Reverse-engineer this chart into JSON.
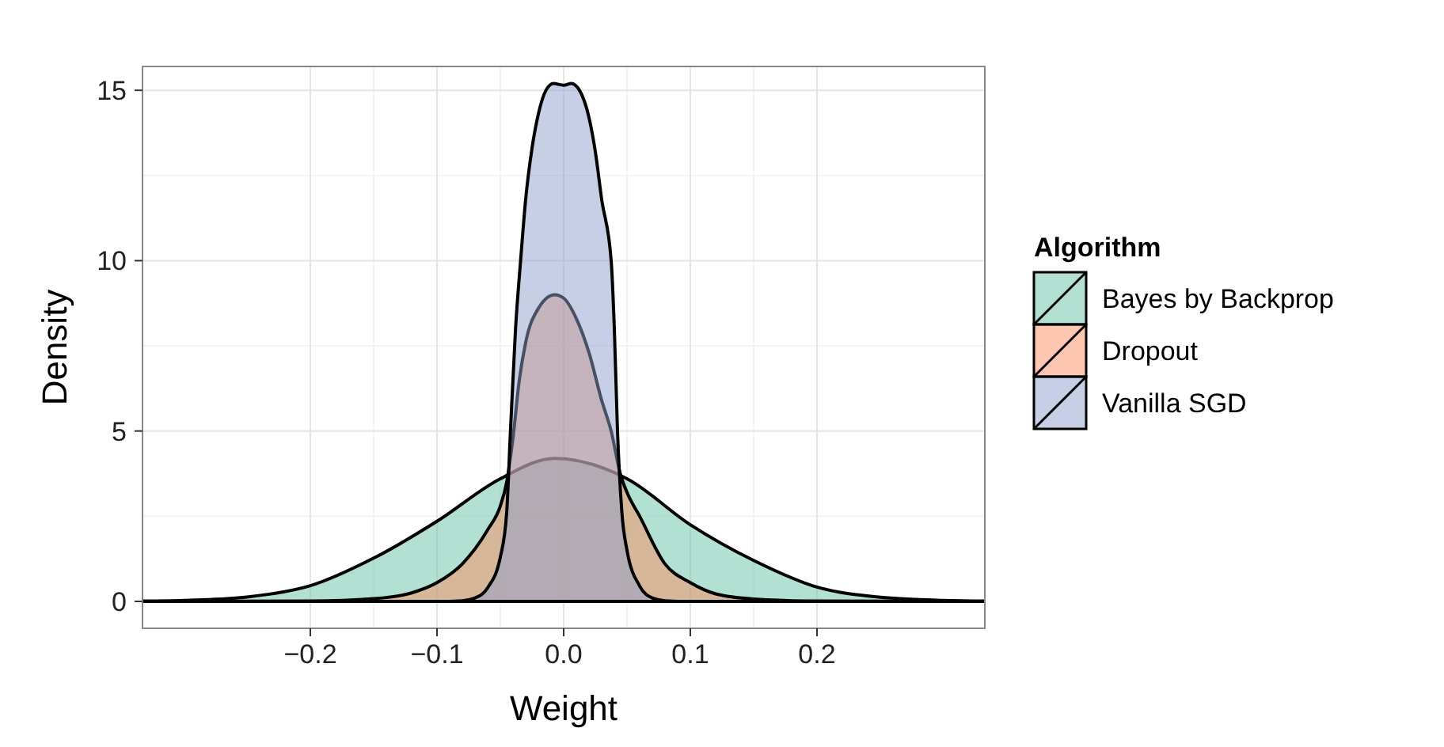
{
  "chart_data": {
    "type": "area",
    "xlabel": "Weight",
    "ylabel": "Density",
    "legend_title": "Algorithm",
    "legend": "right",
    "grid": true,
    "xlim": [
      -0.3325,
      0.3325
    ],
    "ylim": [
      -0.79,
      15.7
    ],
    "xticks": [
      {
        "value": -0.2,
        "label": "−0.2"
      },
      {
        "value": -0.1,
        "label": "−0.1"
      },
      {
        "value": 0,
        "label": "0.0"
      },
      {
        "value": 0.1,
        "label": "0.1"
      },
      {
        "value": 0.2,
        "label": "0.2"
      }
    ],
    "yticks": [
      0,
      5,
      10,
      15
    ],
    "series": [
      {
        "name": "Bayes by Backprop",
        "color": "#66c2a5",
        "x": [
          -0.3325,
          -0.3,
          -0.25,
          -0.2,
          -0.15,
          -0.1,
          -0.05,
          -0.007,
          0.05,
          0.1,
          0.15,
          0.2,
          0.25,
          0.3,
          0.3325
        ],
        "values": [
          0.01,
          0.03,
          0.13,
          0.46,
          1.27,
          2.35,
          3.6,
          4.2,
          3.6,
          2.25,
          1.2,
          0.42,
          0.12,
          0.03,
          0.01
        ]
      },
      {
        "name": "Dropout",
        "color": "#fc8d62",
        "x": [
          -0.3325,
          -0.2,
          -0.15,
          -0.12,
          -0.1,
          -0.08,
          -0.06,
          -0.05,
          -0.045,
          -0.04,
          -0.035,
          -0.03,
          -0.02,
          -0.007,
          0,
          0.01,
          0.02,
          0.03,
          0.0375,
          0.045,
          0.05,
          0.06,
          0.08,
          0.1,
          0.12,
          0.15,
          0.2,
          0.3325
        ],
        "values": [
          0,
          0.01,
          0.08,
          0.25,
          0.55,
          1.1,
          2.1,
          2.8,
          3.5,
          4.8,
          6.5,
          7.6,
          8.6,
          9.0,
          8.9,
          8.3,
          7.3,
          5.9,
          5.0,
          3.7,
          3.2,
          2.5,
          1.1,
          0.55,
          0.22,
          0.07,
          0.01,
          0
        ]
      },
      {
        "name": "Vanilla SGD",
        "color": "#8da0cb",
        "x": [
          -0.3325,
          -0.1,
          -0.08,
          -0.07,
          -0.06,
          -0.05,
          -0.045,
          -0.042,
          -0.038,
          -0.034,
          -0.03,
          -0.025,
          -0.02,
          -0.014,
          -0.008,
          0,
          0.006,
          0.0125,
          0.02,
          0.025,
          0.03,
          0.0375,
          0.04,
          0.0425,
          0.046,
          0.05,
          0.06,
          0.07,
          0.08,
          0.1,
          0.3325
        ],
        "values": [
          0,
          0,
          0.02,
          0.1,
          0.4,
          1.3,
          2.6,
          5,
          8,
          10,
          11.8,
          13.3,
          14.3,
          15,
          15.2,
          15.15,
          15.2,
          15,
          14.2,
          13.2,
          11.8,
          10,
          8,
          5,
          2.6,
          1.5,
          0.45,
          0.1,
          0.02,
          0,
          0
        ]
      }
    ]
  }
}
